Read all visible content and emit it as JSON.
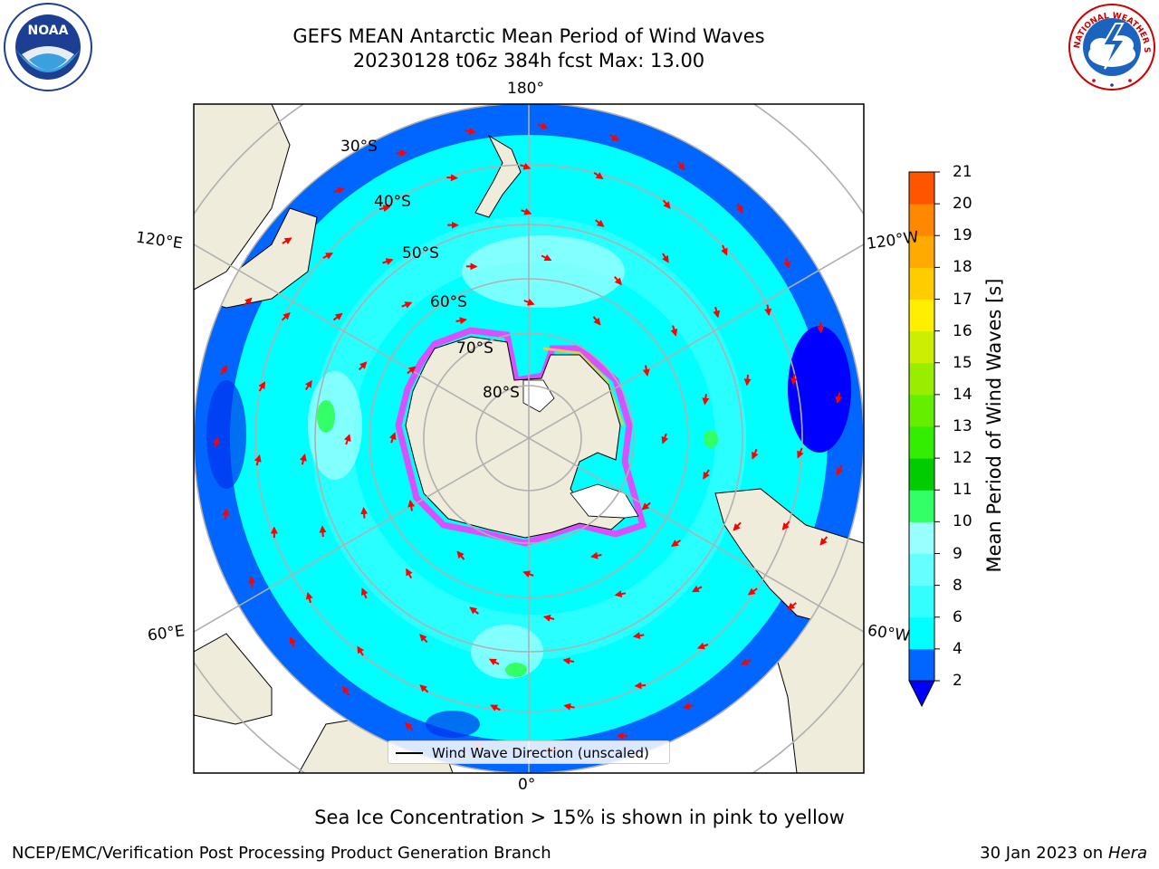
{
  "title": {
    "line1": "GEFS MEAN Antarctic Mean Period of Wind Waves",
    "line2": "20230128 t06z 384h fcst   Max: 13.00"
  },
  "logos": {
    "left": {
      "name": "noaa-logo",
      "text": "NOAA"
    },
    "right": {
      "name": "nws-logo",
      "text": "NATIONAL WEATHER SERVICE"
    }
  },
  "map": {
    "projection": "south-polar-stereographic",
    "lon_labels": {
      "top": "180°",
      "bottom": "0°",
      "left_upper": "120°E",
      "left_lower": "60°E",
      "right_upper": "120°W",
      "right_lower": "60°W"
    },
    "lat_labels": [
      "30°S",
      "40°S",
      "50°S",
      "60°S",
      "70°S",
      "80°S"
    ],
    "colors": {
      "land": "#efecdc",
      "ice_edge": "#ff33ff",
      "arrows": "#ff0000",
      "grid": "#b0b0b0"
    }
  },
  "legend": {
    "label": "Wind Wave Direction (unscaled)"
  },
  "colorbar": {
    "title": "Mean Period of Wind Waves [s]",
    "ticks": [
      "2",
      "4",
      "6",
      "8",
      "9",
      "10",
      "11",
      "12",
      "13",
      "14",
      "15",
      "16",
      "17",
      "18",
      "19",
      "20",
      "21"
    ],
    "colors": [
      "#0066ff",
      "#00ffff",
      "#33ffff",
      "#66ffff",
      "#99ffff",
      "#33ff66",
      "#00cc00",
      "#33ee00",
      "#66ee00",
      "#99ee00",
      "#ccee00",
      "#ffee00",
      "#ffcc00",
      "#ffaa00",
      "#ff8800",
      "#ff5500",
      "#ff2200",
      "#ff0000"
    ],
    "under_color": "#0000ff",
    "extend": "min"
  },
  "footer": {
    "ice_note": "Sea Ice Concentration > 15% is shown in pink to yellow",
    "left": "NCEP/EMC/Verification Post Processing Product Generation Branch",
    "right_date": "30 Jan 2023 on ",
    "right_machine": "Hera"
  }
}
